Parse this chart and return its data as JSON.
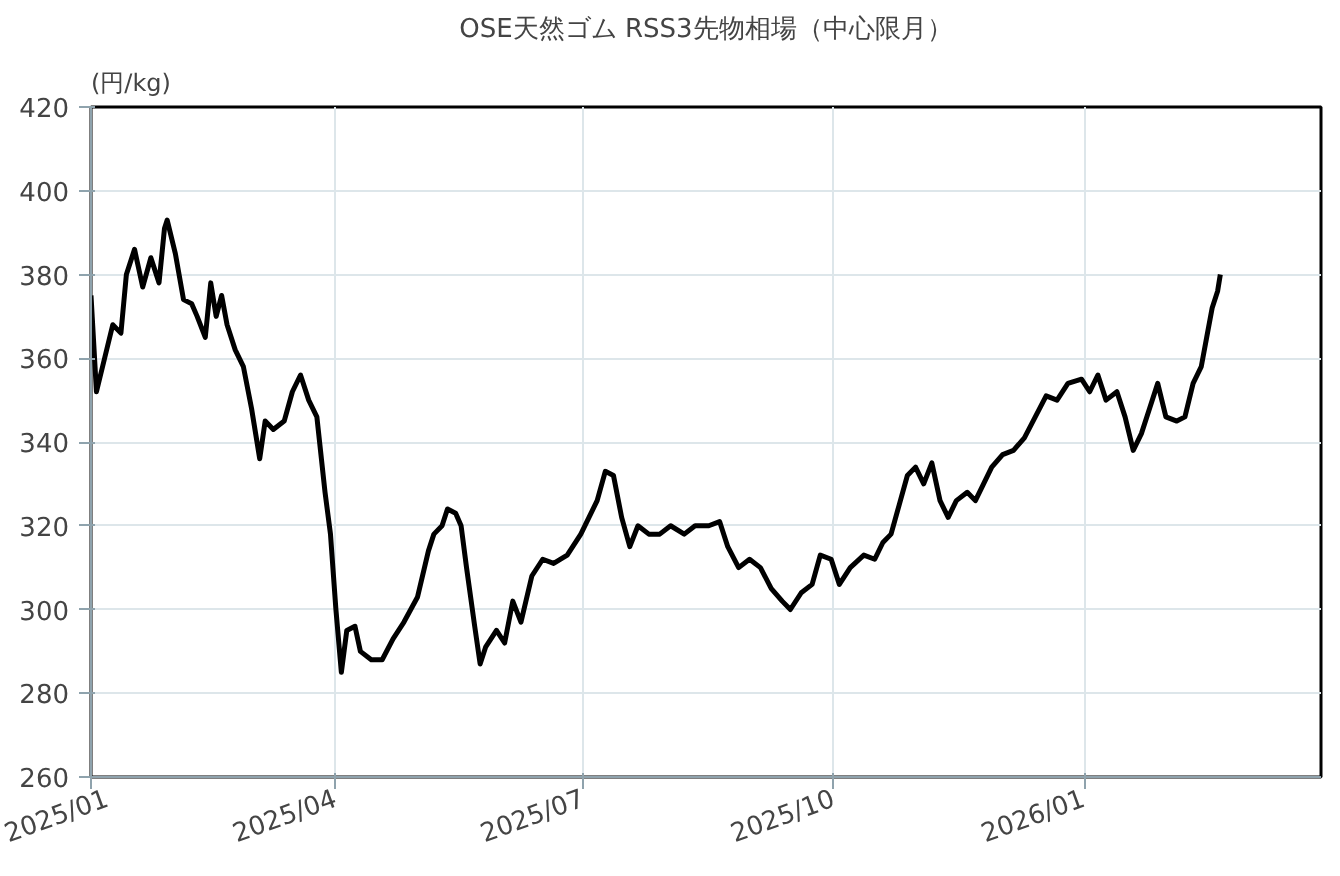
{
  "chart_data": {
    "type": "line",
    "title": "OSE天然ゴム RSS3先物相場（中心限月）",
    "ylabel": "(円/kg)",
    "x": [
      "2025-01-01",
      "2025-01-03",
      "2025-01-06",
      "2025-01-09",
      "2025-01-12",
      "2025-01-14",
      "2025-01-17",
      "2025-01-20",
      "2025-01-23",
      "2025-01-26",
      "2025-01-28",
      "2025-01-29",
      "2025-02-01",
      "2025-02-04",
      "2025-02-07",
      "2025-02-09",
      "2025-02-12",
      "2025-02-14",
      "2025-02-16",
      "2025-02-18",
      "2025-02-20",
      "2025-02-23",
      "2025-02-26",
      "2025-03-01",
      "2025-03-04",
      "2025-03-06",
      "2025-03-09",
      "2025-03-13",
      "2025-03-16",
      "2025-03-19",
      "2025-03-22",
      "2025-03-25",
      "2025-03-28",
      "2025-03-30",
      "2025-04-01",
      "2025-04-03",
      "2025-04-05",
      "2025-04-08",
      "2025-04-10",
      "2025-04-14",
      "2025-04-18",
      "2025-04-22",
      "2025-04-26",
      "2025-05-01",
      "2025-05-05",
      "2025-05-07",
      "2025-05-10",
      "2025-05-12",
      "2025-05-15",
      "2025-05-17",
      "2025-05-19",
      "2025-05-22",
      "2025-05-24",
      "2025-05-26",
      "2025-05-30",
      "2025-06-02",
      "2025-06-05",
      "2025-06-08",
      "2025-06-12",
      "2025-06-16",
      "2025-06-20",
      "2025-06-25",
      "2025-06-30",
      "2025-07-03",
      "2025-07-06",
      "2025-07-09",
      "2025-07-12",
      "2025-07-15",
      "2025-07-18",
      "2025-07-21",
      "2025-07-25",
      "2025-07-29",
      "2025-08-02",
      "2025-08-07",
      "2025-08-11",
      "2025-08-16",
      "2025-08-20",
      "2025-08-23",
      "2025-08-27",
      "2025-08-31",
      "2025-09-04",
      "2025-09-08",
      "2025-09-12",
      "2025-09-15",
      "2025-09-19",
      "2025-09-23",
      "2025-09-26",
      "2025-09-30",
      "2025-10-03",
      "2025-10-07",
      "2025-10-12",
      "2025-10-16",
      "2025-10-19",
      "2025-10-22",
      "2025-10-25",
      "2025-10-28",
      "2025-10-31",
      "2025-11-03",
      "2025-11-06",
      "2025-11-09",
      "2025-11-12",
      "2025-11-15",
      "2025-11-19",
      "2025-11-22",
      "2025-11-25",
      "2025-11-28",
      "2025-12-02",
      "2025-12-06",
      "2025-12-10",
      "2025-12-14",
      "2025-12-18",
      "2025-12-22",
      "2025-12-26",
      "2025-12-31",
      "2026-01-03",
      "2026-01-06",
      "2026-01-09",
      "2026-01-13",
      "2026-01-16",
      "2026-01-19",
      "2026-01-22",
      "2026-01-25",
      "2026-01-28",
      "2026-01-31",
      "2026-02-04",
      "2026-02-07",
      "2026-02-10",
      "2026-02-13",
      "2026-02-15",
      "2026-02-17",
      "2026-02-19",
      "2026-02-20"
    ],
    "series": [
      {
        "color": "#000000",
        "values": [
          375,
          352,
          360,
          368,
          366,
          380,
          386,
          377,
          384,
          378,
          391,
          393,
          385,
          374,
          373,
          370,
          365,
          378,
          370,
          375,
          368,
          362,
          358,
          348,
          336,
          345,
          343,
          345,
          352,
          356,
          350,
          346,
          328,
          318,
          300,
          285,
          295,
          296,
          290,
          288,
          288,
          293,
          297,
          303,
          314,
          318,
          320,
          324,
          323,
          320,
          310,
          296,
          287,
          291,
          295,
          292,
          302,
          297,
          308,
          312,
          311,
          313,
          318,
          322,
          326,
          333,
          332,
          322,
          315,
          320,
          318,
          318,
          320,
          318,
          320,
          320,
          321,
          315,
          310,
          312,
          310,
          305,
          302,
          300,
          304,
          306,
          313,
          312,
          306,
          310,
          313,
          312,
          316,
          318,
          325,
          332,
          334,
          330,
          335,
          326,
          322,
          326,
          328,
          326,
          330,
          334,
          337,
          338,
          341,
          346,
          351,
          350,
          354,
          355,
          352,
          356,
          350,
          352,
          346,
          338,
          342,
          348,
          354,
          346,
          345,
          346,
          354,
          358,
          365,
          372,
          376,
          380
        ]
      }
    ],
    "xlim": [
      "2025-01-01",
      "2026-03-29"
    ],
    "xticks": [
      {
        "value": "2025-01-01",
        "label": "2025/01"
      },
      {
        "value": "2025-04-01",
        "label": "2025/04"
      },
      {
        "value": "2025-07-01",
        "label": "2025/07"
      },
      {
        "value": "2025-10-01",
        "label": "2025/10"
      },
      {
        "value": "2026-01-01",
        "label": "2026/01"
      }
    ],
    "ylim": [
      260,
      420
    ],
    "yticks": [
      260,
      280,
      300,
      320,
      340,
      360,
      380,
      400,
      420
    ],
    "grid": true,
    "line_style": "solid"
  }
}
